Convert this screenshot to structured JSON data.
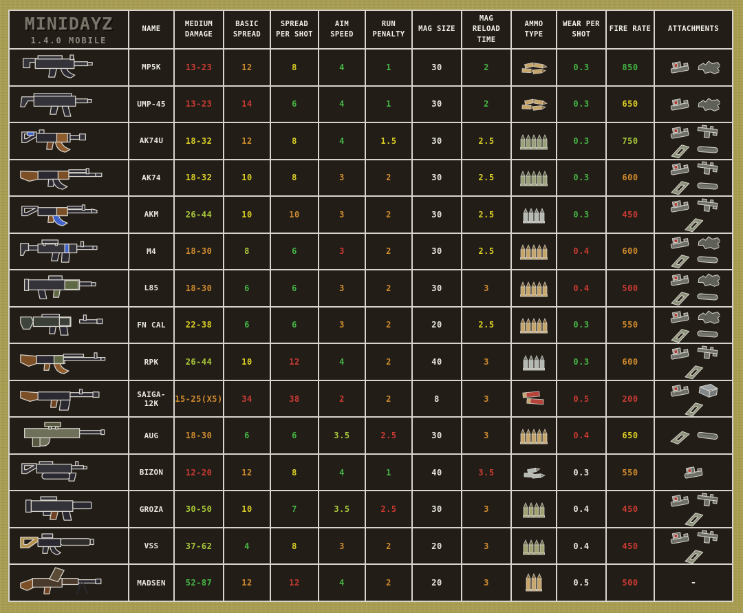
{
  "meta": {
    "title": "MINIDAYZ",
    "subtitle": "1.4.0 MOBILE"
  },
  "columns": [
    "NAME",
    "MEDIUM DAMAGE",
    "BASIC SPREAD",
    "SPREAD PER SHOT",
    "AIM SPEED",
    "RUN PENALTY",
    "MAG SIZE",
    "MAG RELOAD TIME",
    "AMMO TYPE",
    "WEAR PER SHOT",
    "FIRE RATE",
    "ATTACHMENTS"
  ],
  "colors": {
    "white": "#e9e6e0",
    "green": "#45b545",
    "yellowgreen": "#a9c93a",
    "yellow": "#dbcf26",
    "orange": "#d08c2e",
    "red": "#cb3b33"
  },
  "no_attachments_label": "-",
  "rows": [
    {
      "name": "MP5K",
      "weapon": "mp5k",
      "ammo": "9mm-tan-pile",
      "stats": [
        [
          "13-23",
          "red"
        ],
        [
          "12",
          "orange"
        ],
        [
          "8",
          "yellow"
        ],
        [
          "4",
          "green"
        ],
        [
          "1",
          "green"
        ],
        [
          "30",
          "white"
        ],
        [
          "2",
          "green"
        ]
      ],
      "wear": [
        "0.3",
        "green"
      ],
      "fire_rate": [
        "850",
        "green"
      ],
      "attachments": [
        "red-dot-sight",
        "suppressor"
      ]
    },
    {
      "name": "UMP-45",
      "weapon": "ump45",
      "ammo": "45acp-tan-pile",
      "stats": [
        [
          "13-23",
          "red"
        ],
        [
          "14",
          "red"
        ],
        [
          "6",
          "green"
        ],
        [
          "4",
          "green"
        ],
        [
          "1",
          "green"
        ],
        [
          "30",
          "white"
        ],
        [
          "2",
          "green"
        ]
      ],
      "wear": [
        "0.3",
        "green"
      ],
      "fire_rate": [
        "650",
        "yellow"
      ],
      "attachments": [
        "red-dot-sight",
        "suppressor"
      ]
    },
    {
      "name": "AK74U",
      "weapon": "ak74u",
      "ammo": "rifle-green-stand",
      "stats": [
        [
          "18-32",
          "yellow"
        ],
        [
          "12",
          "orange"
        ],
        [
          "8",
          "yellow"
        ],
        [
          "4",
          "green"
        ],
        [
          "1.5",
          "yellow"
        ],
        [
          "30",
          "white"
        ],
        [
          "2.5",
          "yellow"
        ]
      ],
      "wear": [
        "0.3",
        "green"
      ],
      "fire_rate": [
        "750",
        "yellowgreen"
      ],
      "attachments": [
        "red-dot-sight",
        "rail-grip",
        "magazine",
        "tube"
      ]
    },
    {
      "name": "AK74",
      "weapon": "ak74",
      "ammo": "rifle-green-stand",
      "stats": [
        [
          "18-32",
          "yellow"
        ],
        [
          "10",
          "yellow"
        ],
        [
          "8",
          "yellow"
        ],
        [
          "3",
          "orange"
        ],
        [
          "2",
          "orange"
        ],
        [
          "30",
          "white"
        ],
        [
          "2.5",
          "yellow"
        ]
      ],
      "wear": [
        "0.3",
        "green"
      ],
      "fire_rate": [
        "600",
        "orange"
      ],
      "attachments": [
        "red-dot-sight",
        "rail-grip",
        "magazine",
        "tube"
      ]
    },
    {
      "name": "AKM",
      "weapon": "akm",
      "ammo": "rifle-gray-stand",
      "stats": [
        [
          "26-44",
          "yellowgreen"
        ],
        [
          "10",
          "yellow"
        ],
        [
          "10",
          "orange"
        ],
        [
          "3",
          "orange"
        ],
        [
          "2",
          "orange"
        ],
        [
          "30",
          "white"
        ],
        [
          "2.5",
          "yellow"
        ]
      ],
      "wear": [
        "0.3",
        "green"
      ],
      "fire_rate": [
        "450",
        "red"
      ],
      "attachments": [
        "red-dot-sight",
        "rail-grip",
        "magazine"
      ]
    },
    {
      "name": "M4",
      "weapon": "m4",
      "ammo": "rifle-tan-stand",
      "stats": [
        [
          "18-30",
          "orange"
        ],
        [
          "8",
          "yellowgreen"
        ],
        [
          "6",
          "green"
        ],
        [
          "3",
          "red"
        ],
        [
          "2",
          "orange"
        ],
        [
          "30",
          "white"
        ],
        [
          "2.5",
          "yellow"
        ]
      ],
      "wear": [
        "0.4",
        "red"
      ],
      "fire_rate": [
        "600",
        "orange"
      ],
      "attachments": [
        "red-dot-sight",
        "suppressor",
        "magazine",
        "tube"
      ]
    },
    {
      "name": "L85",
      "weapon": "l85",
      "ammo": "rifle-tan-stand",
      "stats": [
        [
          "18-30",
          "orange"
        ],
        [
          "6",
          "green"
        ],
        [
          "6",
          "green"
        ],
        [
          "3",
          "orange"
        ],
        [
          "2",
          "orange"
        ],
        [
          "30",
          "white"
        ],
        [
          "3",
          "orange"
        ]
      ],
      "wear": [
        "0.4",
        "red"
      ],
      "fire_rate": [
        "500",
        "red"
      ],
      "attachments": [
        "red-dot-sight",
        "suppressor",
        "magazine",
        "tube"
      ]
    },
    {
      "name": "FN CAL",
      "weapon": "fncal",
      "ammo": "rifle-tan-stand",
      "stats": [
        [
          "22-38",
          "yellow"
        ],
        [
          "6",
          "green"
        ],
        [
          "6",
          "green"
        ],
        [
          "3",
          "orange"
        ],
        [
          "2",
          "orange"
        ],
        [
          "20",
          "white"
        ],
        [
          "2.5",
          "yellow"
        ]
      ],
      "wear": [
        "0.3",
        "green"
      ],
      "fire_rate": [
        "550",
        "orange"
      ],
      "attachments": [
        "red-dot-sight",
        "suppressor",
        "magazine",
        "tube"
      ]
    },
    {
      "name": "RPK",
      "weapon": "rpk",
      "ammo": "rifle-gray-stand",
      "stats": [
        [
          "26-44",
          "yellowgreen"
        ],
        [
          "10",
          "yellow"
        ],
        [
          "12",
          "red"
        ],
        [
          "4",
          "green"
        ],
        [
          "2",
          "orange"
        ],
        [
          "40",
          "white"
        ],
        [
          "3",
          "orange"
        ]
      ],
      "wear": [
        "0.3",
        "green"
      ],
      "fire_rate": [
        "600",
        "orange"
      ],
      "attachments": [
        "red-dot-sight",
        "rail-grip",
        "magazine"
      ]
    },
    {
      "name": "SAIGA-12K",
      "weapon": "saiga12k",
      "ammo": "shotgun-red-shells",
      "stats": [
        [
          "15-25(X5)",
          "orange"
        ],
        [
          "34",
          "red"
        ],
        [
          "38",
          "red"
        ],
        [
          "2",
          "red"
        ],
        [
          "2",
          "orange"
        ],
        [
          "8",
          "white"
        ],
        [
          "3",
          "orange"
        ]
      ],
      "wear": [
        "0.5",
        "red"
      ],
      "fire_rate": [
        "200",
        "red"
      ],
      "attachments": [
        "red-dot-sight",
        "ammo-box",
        "magazine"
      ]
    },
    {
      "name": "AUG",
      "weapon": "aug",
      "ammo": "rifle-tan-stand",
      "stats": [
        [
          "18-30",
          "orange"
        ],
        [
          "6",
          "green"
        ],
        [
          "6",
          "green"
        ],
        [
          "3.5",
          "yellowgreen"
        ],
        [
          "2.5",
          "red"
        ],
        [
          "30",
          "white"
        ],
        [
          "3",
          "orange"
        ]
      ],
      "wear": [
        "0.4",
        "red"
      ],
      "fire_rate": [
        "650",
        "yellow"
      ],
      "attachments": [
        "magazine",
        "tube"
      ]
    },
    {
      "name": "BIZON",
      "weapon": "bizon",
      "ammo": "9mm-gray-pile",
      "stats": [
        [
          "12-20",
          "red"
        ],
        [
          "12",
          "orange"
        ],
        [
          "8",
          "yellow"
        ],
        [
          "4",
          "green"
        ],
        [
          "1",
          "green"
        ],
        [
          "40",
          "white"
        ],
        [
          "3.5",
          "red"
        ]
      ],
      "wear": [
        "0.3",
        "white"
      ],
      "fire_rate": [
        "550",
        "orange"
      ],
      "attachments": [
        "red-dot-sight"
      ]
    },
    {
      "name": "GROZA",
      "weapon": "groza",
      "ammo": "rifle-olive-stand",
      "stats": [
        [
          "30-50",
          "yellowgreen"
        ],
        [
          "10",
          "yellow"
        ],
        [
          "7",
          "green"
        ],
        [
          "3.5",
          "yellowgreen"
        ],
        [
          "2.5",
          "red"
        ],
        [
          "30",
          "white"
        ],
        [
          "3",
          "orange"
        ]
      ],
      "wear": [
        "0.4",
        "white"
      ],
      "fire_rate": [
        "450",
        "red"
      ],
      "attachments": [
        "red-dot-sight",
        "rail-grip",
        "magazine"
      ]
    },
    {
      "name": "VSS",
      "weapon": "vss",
      "ammo": "rifle-olive-stand",
      "stats": [
        [
          "37-62",
          "yellowgreen"
        ],
        [
          "4",
          "green"
        ],
        [
          "8",
          "yellow"
        ],
        [
          "3",
          "orange"
        ],
        [
          "2",
          "orange"
        ],
        [
          "20",
          "white"
        ],
        [
          "3",
          "orange"
        ]
      ],
      "wear": [
        "0.4",
        "white"
      ],
      "fire_rate": [
        "450",
        "red"
      ],
      "attachments": [
        "red-dot-sight",
        "rail-grip",
        "magazine"
      ]
    },
    {
      "name": "MADSEN",
      "weapon": "madsen",
      "ammo": "rifle-tan-stand3",
      "stats": [
        [
          "52-87",
          "green"
        ],
        [
          "12",
          "orange"
        ],
        [
          "12",
          "red"
        ],
        [
          "4",
          "green"
        ],
        [
          "2",
          "orange"
        ],
        [
          "20",
          "white"
        ],
        [
          "3",
          "orange"
        ]
      ],
      "wear": [
        "0.5",
        "white"
      ],
      "fire_rate": [
        "500",
        "red"
      ],
      "attachments": []
    }
  ]
}
